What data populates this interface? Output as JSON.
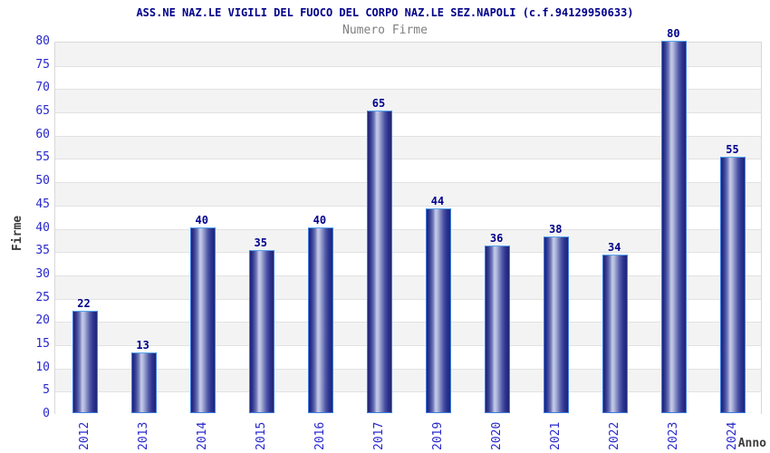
{
  "chart_data": {
    "type": "bar",
    "title": "ASS.NE NAZ.LE VIGILI DEL FUOCO DEL CORPO NAZ.LE SEZ.NAPOLI (c.f.94129950633)",
    "subtitle": "Numero Firme",
    "xlabel": "Anno",
    "ylabel": "Firme",
    "categories": [
      "2012",
      "2013",
      "2014",
      "2015",
      "2016",
      "2017",
      "2019",
      "2020",
      "2021",
      "2022",
      "2023",
      "2024"
    ],
    "values": [
      22,
      13,
      40,
      35,
      40,
      65,
      44,
      36,
      38,
      34,
      80,
      55
    ],
    "ylim": [
      0,
      80
    ],
    "ytick_step": 5,
    "grid": "horizontal-bands-alternating",
    "legend": "none",
    "bar_value_labels_shown": true,
    "x_tick_rotation_degrees": -90,
    "colors": {
      "background": "#ffffff",
      "title": "#00008b",
      "subtitle": "#7f7f7f",
      "tick_labels": "#2828cc",
      "axis_titles": "#3c3c3c",
      "value_labels": "#00008b",
      "bar_gradient_dark": "#1e2376",
      "bar_gradient_light": "#c6cbe7",
      "bar_border": "#3e7de0",
      "band_fill_gray": "#f3f3f3",
      "band_fill_white": "#ffffff",
      "grid_line": "#e2e2e2",
      "plot_border": "#d8d8d8"
    }
  }
}
